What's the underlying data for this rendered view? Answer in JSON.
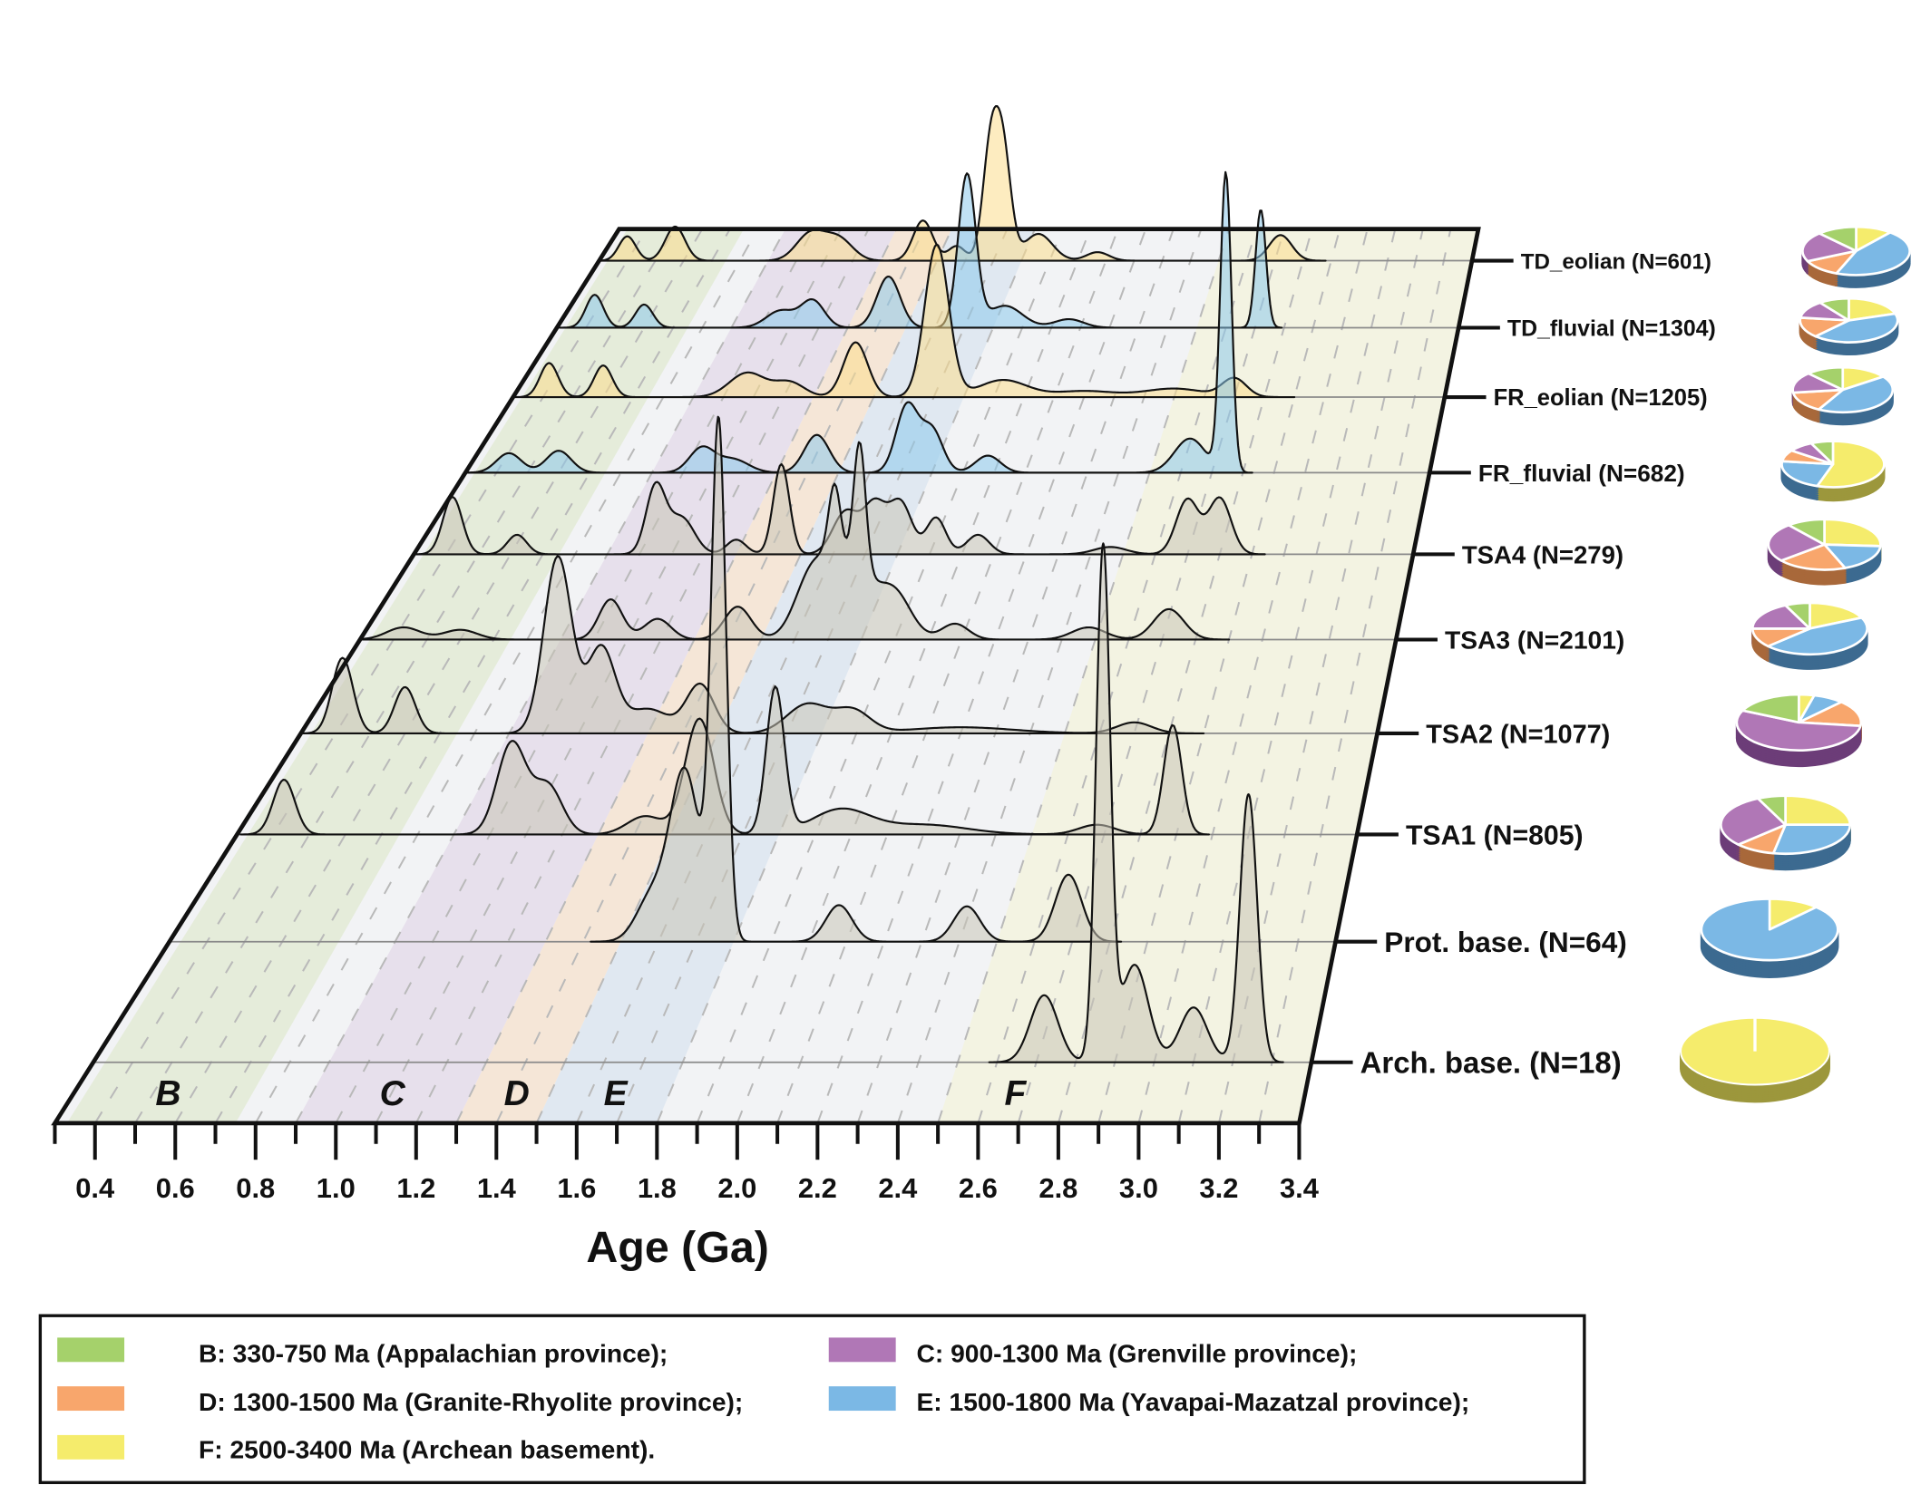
{
  "chart_data": {
    "type": "ridgeline-kde",
    "xlabel": "Age (Ga)",
    "xlim": [
      0.3,
      3.4
    ],
    "x_ticks": [
      "0.4",
      "0.6",
      "0.8",
      "1.0",
      "1.2",
      "1.4",
      "1.6",
      "1.8",
      "2.0",
      "2.2",
      "2.4",
      "2.6",
      "2.8",
      "3.0",
      "3.2",
      "3.4"
    ],
    "x_tick_values": [
      0.4,
      0.6,
      0.8,
      1.0,
      1.2,
      1.4,
      1.6,
      1.8,
      2.0,
      2.2,
      2.4,
      2.6,
      2.8,
      3.0,
      3.2,
      3.4
    ],
    "grid": "dashed every 0.1 Ga",
    "bands": [
      {
        "id": "B",
        "label": "B",
        "range_ga": [
          0.33,
          0.75
        ],
        "color": "#e5ecda"
      },
      {
        "id": "C",
        "label": "C",
        "range_ga": [
          0.9,
          1.3
        ],
        "color": "#e7e0ec"
      },
      {
        "id": "D",
        "label": "D",
        "range_ga": [
          1.3,
          1.5
        ],
        "color": "#f5e6d7"
      },
      {
        "id": "E",
        "label": "E",
        "range_ga": [
          1.5,
          1.8
        ],
        "color": "#e0e8f1"
      },
      {
        "id": "F",
        "label": "F",
        "range_ga": [
          2.5,
          3.4
        ],
        "color": "#f3f3e2"
      }
    ],
    "density_units": "relative",
    "samples": [
      {
        "label": "TD_eolian (N=601)",
        "fill": "rgba(252,220,140,0.55)",
        "peaks": [
          [
            0.4,
            0.2,
            0.03
          ],
          [
            0.57,
            0.28,
            0.035
          ],
          [
            1.05,
            0.22,
            0.05
          ],
          [
            1.15,
            0.18,
            0.05
          ],
          [
            1.45,
            0.33,
            0.035
          ],
          [
            1.57,
            0.12,
            0.03
          ],
          [
            1.69,
            0.9,
            0.028
          ],
          [
            1.735,
            0.85,
            0.028
          ],
          [
            1.86,
            0.22,
            0.05
          ],
          [
            2.07,
            0.07,
            0.04
          ],
          [
            2.72,
            0.21,
            0.04
          ]
        ],
        "fractions": {
          "B": 0.12,
          "C": 0.2,
          "D": 0.12,
          "E": 0.45,
          "F": 0.11
        }
      },
      {
        "label": "TD_fluvial (N=1304)",
        "fill": "rgba(140,200,235,0.55)",
        "peaks": [
          [
            0.43,
            0.27,
            0.03
          ],
          [
            0.6,
            0.19,
            0.03
          ],
          [
            1.07,
            0.14,
            0.05
          ],
          [
            1.18,
            0.22,
            0.04
          ],
          [
            1.44,
            0.42,
            0.04
          ],
          [
            1.71,
            1.25,
            0.03
          ],
          [
            1.84,
            0.18,
            0.06
          ],
          [
            2.06,
            0.07,
            0.05
          ],
          [
            2.72,
            0.97,
            0.018
          ]
        ],
        "fractions": {
          "B": 0.1,
          "C": 0.13,
          "D": 0.15,
          "E": 0.42,
          "F": 0.2
        }
      },
      {
        "label": "FR_eolian (N=1205)",
        "fill": "rgba(252,220,140,0.55)",
        "peaks": [
          [
            0.42,
            0.28,
            0.03
          ],
          [
            0.6,
            0.26,
            0.03
          ],
          [
            1.08,
            0.2,
            0.06
          ],
          [
            1.22,
            0.12,
            0.05
          ],
          [
            1.44,
            0.45,
            0.04
          ],
          [
            1.71,
            1.25,
            0.04
          ],
          [
            1.93,
            0.14,
            0.08
          ],
          [
            2.2,
            0.05,
            0.1
          ],
          [
            2.5,
            0.07,
            0.1
          ],
          [
            2.7,
            0.15,
            0.04
          ]
        ],
        "fractions": {
          "B": 0.12,
          "C": 0.15,
          "D": 0.15,
          "E": 0.43,
          "F": 0.15
        }
      },
      {
        "label": "FR_fluvial (N=682)",
        "fill": "rgba(140,200,235,0.55)",
        "peaks": [
          [
            0.44,
            0.16,
            0.04
          ],
          [
            0.6,
            0.18,
            0.04
          ],
          [
            1.06,
            0.2,
            0.04
          ],
          [
            1.16,
            0.11,
            0.05
          ],
          [
            1.43,
            0.31,
            0.04
          ],
          [
            1.72,
            0.55,
            0.035
          ],
          [
            1.8,
            0.35,
            0.035
          ],
          [
            1.98,
            0.14,
            0.04
          ],
          [
            2.63,
            0.28,
            0.05
          ],
          [
            2.745,
            2.45,
            0.018
          ]
        ],
        "fractions": {
          "B": 0.07,
          "C": 0.08,
          "D": 0.08,
          "E": 0.22,
          "F": 0.55
        }
      },
      {
        "label": "TSA4 (N=279)",
        "fill": "rgba(200,196,182,0.55)",
        "peaks": [
          [
            0.42,
            0.47,
            0.03
          ],
          [
            0.62,
            0.16,
            0.03
          ],
          [
            1.05,
            0.55,
            0.03
          ],
          [
            1.13,
            0.3,
            0.04
          ],
          [
            1.3,
            0.12,
            0.03
          ],
          [
            1.44,
            0.74,
            0.025
          ],
          [
            1.64,
            0.35,
            0.04
          ],
          [
            1.73,
            0.4,
            0.035
          ],
          [
            1.81,
            0.42,
            0.035
          ],
          [
            1.92,
            0.3,
            0.03
          ],
          [
            2.05,
            0.16,
            0.035
          ],
          [
            2.46,
            0.06,
            0.05
          ],
          [
            2.7,
            0.45,
            0.035
          ],
          [
            2.8,
            0.46,
            0.035
          ]
        ],
        "fractions": {
          "B": 0.11,
          "C": 0.25,
          "D": 0.2,
          "E": 0.18,
          "F": 0.26
        }
      },
      {
        "label": "TSA3 (N=2101)",
        "fill": "rgba(200,196,182,0.55)",
        "peaks": [
          [
            0.43,
            0.1,
            0.05
          ],
          [
            0.6,
            0.08,
            0.05
          ],
          [
            1.05,
            0.33,
            0.035
          ],
          [
            1.19,
            0.17,
            0.04
          ],
          [
            1.43,
            0.27,
            0.04
          ],
          [
            1.65,
            0.45,
            0.05
          ],
          [
            1.76,
            0.6,
            0.07
          ],
          [
            1.72,
            0.6,
            0.018
          ],
          [
            1.795,
            1.05,
            0.018
          ],
          [
            1.9,
            0.35,
            0.05
          ],
          [
            2.08,
            0.13,
            0.04
          ],
          [
            2.48,
            0.1,
            0.05
          ],
          [
            2.72,
            0.25,
            0.045
          ]
        ],
        "fractions": {
          "B": 0.07,
          "C": 0.18,
          "D": 0.12,
          "E": 0.45,
          "F": 0.18
        }
      },
      {
        "label": "TSA2 (N=1077)",
        "fill": "rgba(200,196,182,0.55)",
        "peaks": [
          [
            0.42,
            0.62,
            0.03
          ],
          [
            0.6,
            0.38,
            0.03
          ],
          [
            1.04,
            1.45,
            0.04
          ],
          [
            1.165,
            0.7,
            0.04
          ],
          [
            1.3,
            0.2,
            0.06
          ],
          [
            1.45,
            0.4,
            0.04
          ],
          [
            1.76,
            0.24,
            0.06
          ],
          [
            1.89,
            0.18,
            0.05
          ],
          [
            2.2,
            0.05,
            0.15
          ],
          [
            2.7,
            0.09,
            0.05
          ]
        ],
        "fractions": {
          "B": 0.18,
          "C": 0.55,
          "D": 0.15,
          "E": 0.08,
          "F": 0.04
        }
      },
      {
        "label": "TSA1 (N=805)",
        "fill": "rgba(200,196,182,0.55)",
        "peaks": [
          [
            0.43,
            0.45,
            0.03
          ],
          [
            1.06,
            0.75,
            0.04
          ],
          [
            1.16,
            0.4,
            0.04
          ],
          [
            1.43,
            0.15,
            0.05
          ],
          [
            1.58,
            0.95,
            0.04
          ],
          [
            1.79,
            1.2,
            0.025
          ],
          [
            1.97,
            0.2,
            0.08
          ],
          [
            2.2,
            0.08,
            0.12
          ],
          [
            2.68,
            0.08,
            0.05
          ],
          [
            2.89,
            0.9,
            0.025
          ]
        ],
        "fractions": {
          "B": 0.07,
          "C": 0.3,
          "D": 0.1,
          "E": 0.28,
          "F": 0.25
        }
      },
      {
        "label": "Prot. base. (N=64)",
        "fill": "rgba(200,196,182,0.55)",
        "peaks": [
          [
            1.58,
            0.35,
            0.04
          ],
          [
            1.67,
            1.4,
            0.04
          ],
          [
            1.76,
            4.2,
            0.02
          ],
          [
            2.08,
            0.3,
            0.035
          ],
          [
            2.42,
            0.29,
            0.035
          ],
          [
            2.69,
            0.55,
            0.035
          ]
        ],
        "fractions": {
          "B": 0,
          "C": 0,
          "D": 0,
          "E": 0.88,
          "F": 0.12
        }
      },
      {
        "label": "Arch. base. (N=18)",
        "fill": "rgba(200,196,182,0.55)",
        "peaks": [
          [
            2.72,
            0.55,
            0.035
          ],
          [
            2.87,
            4.2,
            0.018
          ],
          [
            2.95,
            0.8,
            0.035
          ],
          [
            3.1,
            0.45,
            0.035
          ],
          [
            3.24,
            2.2,
            0.022
          ]
        ],
        "fractions": {
          "B": 0,
          "C": 0,
          "D": 0,
          "E": 0,
          "F": 1.0
        }
      }
    ],
    "pie_colors": {
      "B": "#a5d16b",
      "C": "#b077b6",
      "D": "#f8a66c",
      "E": "#7bb8e5",
      "F": "#f5ec6c"
    },
    "pie_side_colors": {
      "B": "#6f9644",
      "C": "#6c3d78",
      "D": "#a8683a",
      "E": "#3c6a90",
      "F": "#9c973c"
    }
  },
  "legend": {
    "items": [
      {
        "id": "B",
        "text": "B: 330-750 Ma (Appalachian province);",
        "color": "#a5d16b"
      },
      {
        "id": "C",
        "text": "C: 900-1300 Ma (Grenville province);",
        "color": "#b077b6"
      },
      {
        "id": "D",
        "text": "D: 1300-1500 Ma (Granite-Rhyolite province);",
        "color": "#f8a66c"
      },
      {
        "id": "E",
        "text": "E: 1500-1800 Ma (Yavapai-Mazatzal province);",
        "color": "#7bb8e5"
      },
      {
        "id": "F",
        "text": "F: 2500-3400 Ma (Archean basement).",
        "color": "#f5ec6c"
      }
    ]
  }
}
